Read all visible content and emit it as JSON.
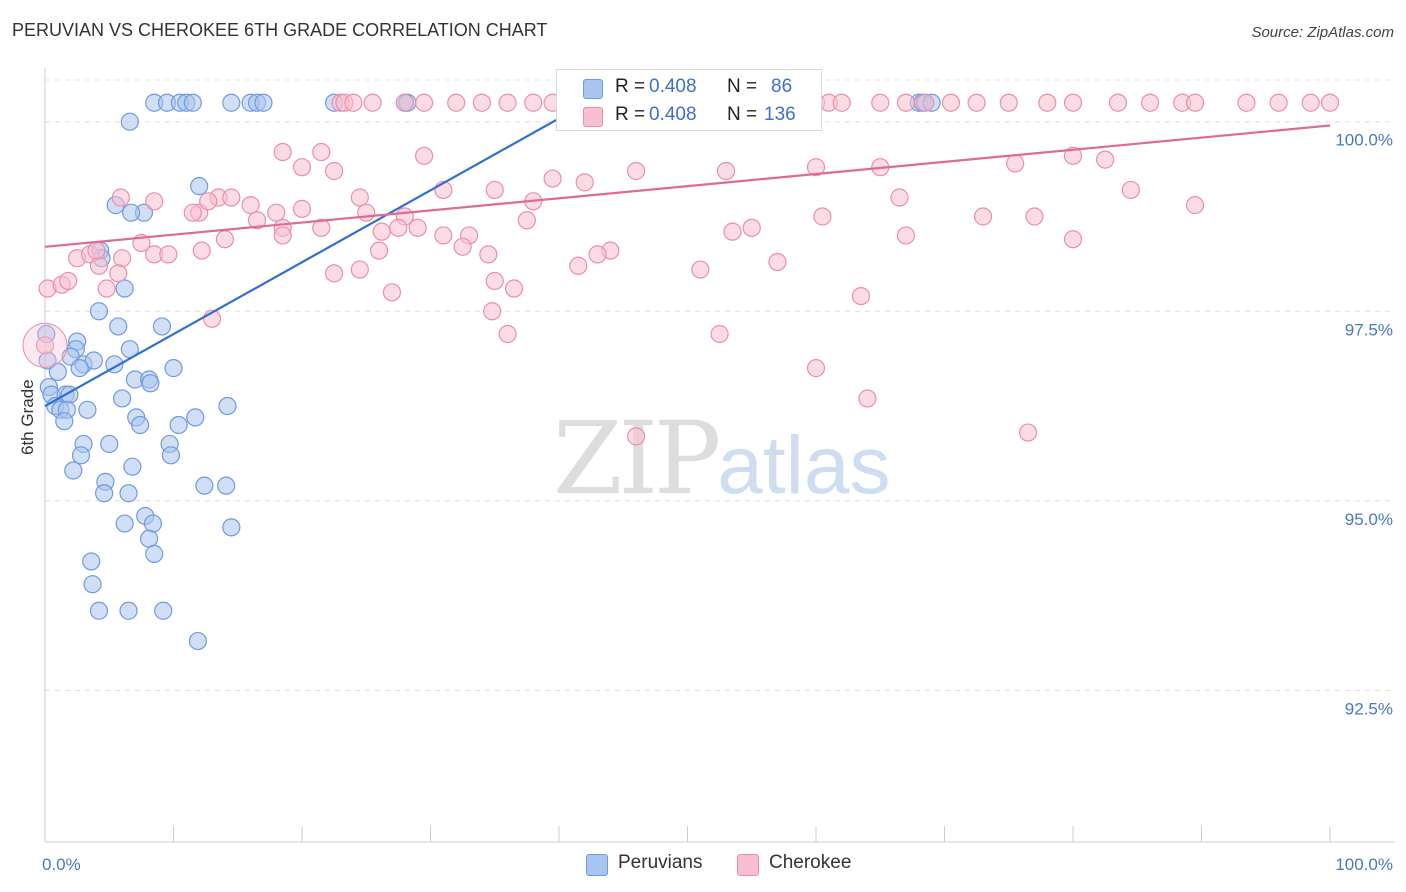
{
  "title": "PERUVIAN VS CHEROKEE 6TH GRADE CORRELATION CHART",
  "source": "Source: ZipAtlas.com",
  "watermark": {
    "zip": "ZIP",
    "atlas": "atlas"
  },
  "legend": {
    "rows": [
      {
        "r_label": "R = ",
        "r_value": "0.408",
        "n_label": "N = ",
        "n_value": "86",
        "color": "#a9c4ef",
        "stroke": "#6f9be0"
      },
      {
        "r_label": "R = ",
        "r_value": "0.408",
        "n_label": "N = ",
        "n_value": "136",
        "color": "#f7c0d0",
        "stroke": "#ec8eab"
      }
    ]
  },
  "bottom_legend": [
    {
      "label": "Peruvians",
      "color": "#a9c4ef",
      "stroke": "#6f9be0"
    },
    {
      "label": "Cherokee",
      "color": "#f7c0d0",
      "stroke": "#ec8eab"
    }
  ],
  "chart_data": {
    "type": "scatter",
    "title": "PERUVIAN VS CHEROKEE 6TH GRADE CORRELATION CHART",
    "xlabel": "",
    "ylabel": "6th Grade",
    "xlim": [
      0,
      100
    ],
    "ylim": [
      90.5,
      100.55
    ],
    "x_tick_labels": [
      "0.0%",
      "100.0%"
    ],
    "y_ticks": [
      92.5,
      95.0,
      97.5,
      100.0
    ],
    "y_tick_labels": [
      "92.5%",
      "95.0%",
      "97.5%",
      "100.0%"
    ],
    "series": [
      {
        "name": "Peruvians",
        "color": "#6f9be0",
        "fill": "#a9c4ef",
        "trend": {
          "x": [
            0,
            42.5
          ],
          "y": [
            96.25,
            100.28
          ]
        },
        "points": [
          [
            8.5,
            100.25
          ],
          [
            9.5,
            100.25
          ],
          [
            10.5,
            100.25
          ],
          [
            11.0,
            100.25
          ],
          [
            11.5,
            100.25
          ],
          [
            14.5,
            100.25
          ],
          [
            16.0,
            100.25
          ],
          [
            16.5,
            100.25
          ],
          [
            17.0,
            100.25
          ],
          [
            22.5,
            100.25
          ],
          [
            28.0,
            100.25
          ],
          [
            28.2,
            100.25
          ],
          [
            68.0,
            100.25
          ],
          [
            68.3,
            100.25
          ],
          [
            69.0,
            100.25
          ],
          [
            6.6,
            100.0
          ],
          [
            12.0,
            99.15
          ],
          [
            5.5,
            98.9
          ],
          [
            7.7,
            98.8
          ],
          [
            6.7,
            98.8
          ],
          [
            4.3,
            98.3
          ],
          [
            4.4,
            98.2
          ],
          [
            6.2,
            97.8
          ],
          [
            4.2,
            97.5
          ],
          [
            0.1,
            97.2
          ],
          [
            5.7,
            97.3
          ],
          [
            9.1,
            97.3
          ],
          [
            2.5,
            97.1
          ],
          [
            2.4,
            97.0
          ],
          [
            6.6,
            97.0
          ],
          [
            2.0,
            96.9
          ],
          [
            3.0,
            96.8
          ],
          [
            3.8,
            96.85
          ],
          [
            5.4,
            96.8
          ],
          [
            2.7,
            96.75
          ],
          [
            0.2,
            96.85
          ],
          [
            10.0,
            96.75
          ],
          [
            1.0,
            96.7
          ],
          [
            7.0,
            96.6
          ],
          [
            8.1,
            96.6
          ],
          [
            8.2,
            96.55
          ],
          [
            0.3,
            96.5
          ],
          [
            0.5,
            96.4
          ],
          [
            1.6,
            96.4
          ],
          [
            1.9,
            96.4
          ],
          [
            6.0,
            96.35
          ],
          [
            0.8,
            96.25
          ],
          [
            1.2,
            96.2
          ],
          [
            3.3,
            96.2
          ],
          [
            1.7,
            96.2
          ],
          [
            14.2,
            96.25
          ],
          [
            7.1,
            96.1
          ],
          [
            11.7,
            96.1
          ],
          [
            1.5,
            96.05
          ],
          [
            7.4,
            96.0
          ],
          [
            10.4,
            96.0
          ],
          [
            3.0,
            95.75
          ],
          [
            5.0,
            95.75
          ],
          [
            9.7,
            95.75
          ],
          [
            2.8,
            95.6
          ],
          [
            9.8,
            95.6
          ],
          [
            2.2,
            95.4
          ],
          [
            6.8,
            95.45
          ],
          [
            4.7,
            95.25
          ],
          [
            12.4,
            95.2
          ],
          [
            14.1,
            95.2
          ],
          [
            4.6,
            95.1
          ],
          [
            6.5,
            95.1
          ],
          [
            7.8,
            94.8
          ],
          [
            8.4,
            94.7
          ],
          [
            6.2,
            94.7
          ],
          [
            14.5,
            94.65
          ],
          [
            8.1,
            94.5
          ],
          [
            8.5,
            94.3
          ],
          [
            3.6,
            94.2
          ],
          [
            3.7,
            93.9
          ],
          [
            4.2,
            93.55
          ],
          [
            6.5,
            93.55
          ],
          [
            9.2,
            93.55
          ],
          [
            11.9,
            93.15
          ]
        ]
      },
      {
        "name": "Cherokee",
        "color": "#ec8eab",
        "fill": "#f7c0d0",
        "trend": {
          "x": [
            0,
            100
          ],
          "y": [
            98.35,
            99.95
          ]
        },
        "points": [
          [
            23.0,
            100.25
          ],
          [
            23.3,
            100.25
          ],
          [
            24.0,
            100.25
          ],
          [
            25.5,
            100.25
          ],
          [
            28.0,
            100.25
          ],
          [
            29.5,
            100.25
          ],
          [
            32.0,
            100.25
          ],
          [
            34.0,
            100.25
          ],
          [
            36.0,
            100.25
          ],
          [
            38.0,
            100.25
          ],
          [
            39.5,
            100.25
          ],
          [
            41.0,
            100.25
          ],
          [
            43.0,
            100.25
          ],
          [
            45.5,
            100.25
          ],
          [
            46.5,
            100.25
          ],
          [
            48.5,
            100.25
          ],
          [
            51.0,
            100.25
          ],
          [
            53.0,
            100.25
          ],
          [
            56.0,
            100.25
          ],
          [
            57.0,
            100.25
          ],
          [
            60.0,
            100.25
          ],
          [
            61.0,
            100.25
          ],
          [
            62.0,
            100.25
          ],
          [
            65.0,
            100.25
          ],
          [
            67.0,
            100.25
          ],
          [
            68.5,
            100.25
          ],
          [
            70.5,
            100.25
          ],
          [
            72.5,
            100.25
          ],
          [
            75.0,
            100.25
          ],
          [
            78.0,
            100.25
          ],
          [
            80.0,
            100.25
          ],
          [
            83.5,
            100.25
          ],
          [
            86.0,
            100.25
          ],
          [
            88.5,
            100.25
          ],
          [
            89.5,
            100.25
          ],
          [
            93.5,
            100.25
          ],
          [
            96.0,
            100.25
          ],
          [
            98.5,
            100.25
          ],
          [
            100.0,
            100.25
          ],
          [
            13.5,
            99.0
          ],
          [
            18.5,
            99.6
          ],
          [
            21.5,
            99.6
          ],
          [
            22.5,
            99.35
          ],
          [
            20.0,
            99.4
          ],
          [
            29.5,
            99.55
          ],
          [
            31.0,
            99.1
          ],
          [
            39.5,
            99.25
          ],
          [
            35.0,
            99.1
          ],
          [
            38.0,
            98.95
          ],
          [
            42.0,
            99.2
          ],
          [
            46.0,
            99.35
          ],
          [
            53.0,
            99.35
          ],
          [
            60.0,
            99.4
          ],
          [
            66.5,
            99.0
          ],
          [
            65.0,
            99.4
          ],
          [
            80.0,
            99.55
          ],
          [
            82.5,
            99.5
          ],
          [
            75.5,
            99.45
          ],
          [
            84.5,
            99.1
          ],
          [
            89.5,
            98.9
          ],
          [
            5.9,
            99.0
          ],
          [
            8.5,
            98.95
          ],
          [
            12.0,
            98.8
          ],
          [
            11.5,
            98.8
          ],
          [
            12.7,
            98.95
          ],
          [
            14.5,
            99.0
          ],
          [
            16.0,
            98.9
          ],
          [
            18.0,
            98.8
          ],
          [
            18.5,
            98.6
          ],
          [
            20.0,
            98.85
          ],
          [
            21.5,
            98.6
          ],
          [
            24.5,
            99.0
          ],
          [
            25.0,
            98.8
          ],
          [
            28.0,
            98.75
          ],
          [
            29.0,
            98.6
          ],
          [
            33.0,
            98.5
          ],
          [
            37.5,
            98.7
          ],
          [
            44.0,
            98.3
          ],
          [
            53.5,
            98.55
          ],
          [
            55.0,
            98.6
          ],
          [
            60.5,
            98.75
          ],
          [
            67.0,
            98.5
          ],
          [
            73.0,
            98.75
          ],
          [
            80.0,
            98.45
          ],
          [
            27.5,
            98.6
          ],
          [
            2.5,
            98.2
          ],
          [
            3.5,
            98.25
          ],
          [
            4.2,
            98.1
          ],
          [
            4.0,
            98.3
          ],
          [
            6.0,
            98.2
          ],
          [
            7.5,
            98.4
          ],
          [
            8.5,
            98.25
          ],
          [
            9.6,
            98.25
          ],
          [
            12.2,
            98.3
          ],
          [
            14.0,
            98.45
          ],
          [
            16.5,
            98.7
          ],
          [
            18.5,
            98.5
          ],
          [
            22.5,
            98.0
          ],
          [
            24.5,
            98.05
          ],
          [
            26.0,
            98.3
          ],
          [
            26.2,
            98.55
          ],
          [
            31.0,
            98.5
          ],
          [
            32.5,
            98.35
          ],
          [
            34.5,
            98.25
          ],
          [
            35.0,
            97.9
          ],
          [
            36.5,
            97.8
          ],
          [
            41.5,
            98.1
          ],
          [
            43.0,
            98.25
          ],
          [
            51.0,
            98.05
          ],
          [
            57.0,
            98.15
          ],
          [
            63.5,
            97.7
          ],
          [
            0.2,
            97.8
          ],
          [
            1.3,
            97.85
          ],
          [
            1.8,
            97.9
          ],
          [
            4.8,
            97.8
          ],
          [
            5.7,
            98.0
          ],
          [
            13.0,
            97.4
          ],
          [
            27.0,
            97.75
          ],
          [
            34.8,
            97.5
          ],
          [
            36.0,
            97.2
          ],
          [
            52.5,
            97.2
          ],
          [
            60.0,
            96.75
          ],
          [
            64.0,
            96.35
          ],
          [
            46.0,
            95.85
          ],
          [
            76.5,
            95.9
          ],
          [
            77.0,
            98.75
          ],
          [
            0.0,
            97.05
          ]
        ]
      }
    ]
  }
}
